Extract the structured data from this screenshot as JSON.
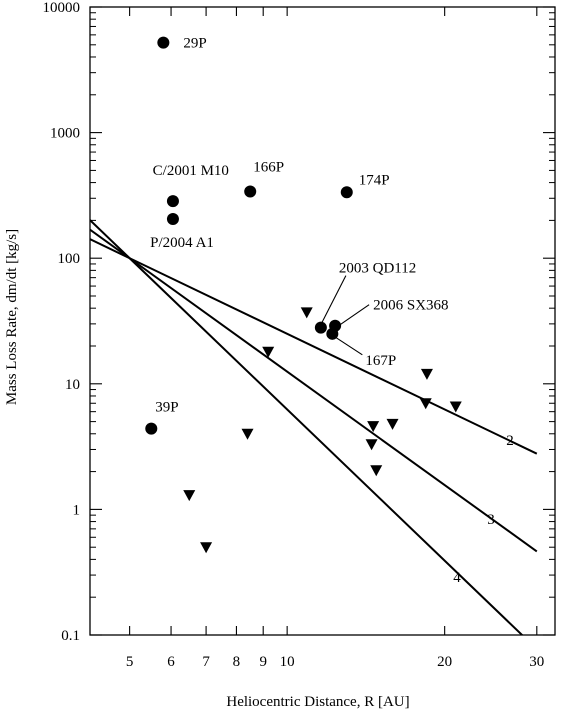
{
  "chart_data": {
    "type": "scatter",
    "xlabel": "Heliocentric Distance, R [AU]",
    "ylabel": "Mass Loss Rate, dm/dt [kg/s]",
    "xscale": "log",
    "yscale": "log",
    "xlim": [
      4.2,
      32.5
    ],
    "ylim": [
      0.1,
      10000
    ],
    "xticks_labeled": [
      5,
      6,
      7,
      8,
      9,
      10,
      20,
      30
    ],
    "xticks_minor": [
      40
    ],
    "yticks": [
      0.1,
      1,
      10,
      100,
      1000,
      10000
    ],
    "ytick_labels": [
      "0.1",
      "1",
      "10",
      "100",
      "1000",
      "10000"
    ],
    "grid": false,
    "series": [
      {
        "marker": "circle",
        "points": [
          {
            "x": 5.8,
            "y": 5200,
            "label": "29P"
          },
          {
            "x": 6.05,
            "y": 285,
            "label": "C/2001 M10"
          },
          {
            "x": 6.05,
            "y": 205,
            "label": "P/2004 A1"
          },
          {
            "x": 8.5,
            "y": 340,
            "label": "166P"
          },
          {
            "x": 13.0,
            "y": 335,
            "label": "174P"
          },
          {
            "x": 11.6,
            "y": 28,
            "label": "2003 QD112"
          },
          {
            "x": 12.35,
            "y": 29,
            "label": "2006 SX368"
          },
          {
            "x": 12.2,
            "y": 25,
            "label": "167P"
          },
          {
            "x": 5.5,
            "y": 4.4,
            "label": "39P"
          }
        ]
      },
      {
        "marker": "triangle-down",
        "points": [
          {
            "x": 10.9,
            "y": 37
          },
          {
            "x": 9.2,
            "y": 18
          },
          {
            "x": 8.4,
            "y": 4.0
          },
          {
            "x": 6.5,
            "y": 1.3
          },
          {
            "x": 7.0,
            "y": 0.5
          },
          {
            "x": 14.6,
            "y": 4.6
          },
          {
            "x": 14.5,
            "y": 3.3
          },
          {
            "x": 14.8,
            "y": 2.05
          },
          {
            "x": 15.9,
            "y": 4.8
          },
          {
            "x": 18.5,
            "y": 12
          },
          {
            "x": 18.4,
            "y": 7.0
          },
          {
            "x": 21.0,
            "y": 6.6
          }
        ]
      }
    ],
    "power_laws": [
      {
        "label": "2",
        "exponent": -2,
        "anchor_x": 5,
        "anchor_y": 100,
        "x_range": [
          4.2,
          30
        ]
      },
      {
        "label": "3",
        "exponent": -3,
        "anchor_x": 5,
        "anchor_y": 100,
        "x_range": [
          4.2,
          30
        ]
      },
      {
        "label": "4",
        "exponent": -4,
        "anchor_x": 5,
        "anchor_y": 100,
        "x_range": [
          4.2,
          30
        ]
      }
    ]
  }
}
